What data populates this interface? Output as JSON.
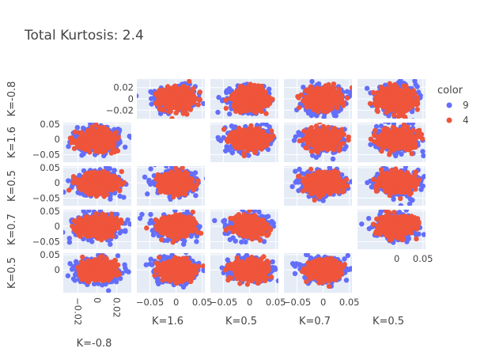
{
  "chart_data": {
    "type": "scatter",
    "layout": "scatter_matrix",
    "title": "Total Kurtosis: 2.4",
    "legend": {
      "title": "color",
      "placement": "right",
      "entries": [
        {
          "name": "9",
          "color": "#636efa"
        },
        {
          "name": "4",
          "color": "#EF553B"
        }
      ]
    },
    "dimensions": [
      {
        "label": "K=-0.8",
        "range": [
          -0.035,
          0.035
        ],
        "ticks": [
          -0.02,
          0,
          0.02
        ],
        "tick_labels": [
          "−0.02",
          "0",
          "0.02"
        ],
        "spread": 0.0095
      },
      {
        "label": "K=1.6",
        "range": [
          -0.075,
          0.055
        ],
        "ticks": [
          -0.05,
          0,
          0.05
        ],
        "tick_labels": [
          "−0.05",
          "0",
          "0.05"
        ],
        "spread": 0.016
      },
      {
        "label": "K=0.5",
        "range": [
          -0.075,
          0.055
        ],
        "ticks": [
          -0.05,
          0,
          0.05
        ],
        "tick_labels": [
          "−0.05",
          "0",
          "0.05"
        ],
        "spread": 0.016
      },
      {
        "label": "K=0.7",
        "range": [
          -0.075,
          0.055
        ],
        "ticks": [
          -0.05,
          0,
          0.05
        ],
        "tick_labels": [
          "−0.05",
          "0",
          "0.05"
        ],
        "spread": 0.016
      },
      {
        "label": "K=0.5",
        "range": [
          -0.075,
          0.055
        ],
        "ticks": [
          0,
          0.05
        ],
        "tick_labels": [
          "0",
          "0.05"
        ],
        "spread": 0.016
      }
    ],
    "diagonal_visible": false,
    "series": [
      {
        "name": "9",
        "color": "#636efa",
        "spread_factor": 1.18
      },
      {
        "name": "4",
        "color": "#EF553B",
        "spread_factor": 0.95
      }
    ],
    "grid": true
  }
}
